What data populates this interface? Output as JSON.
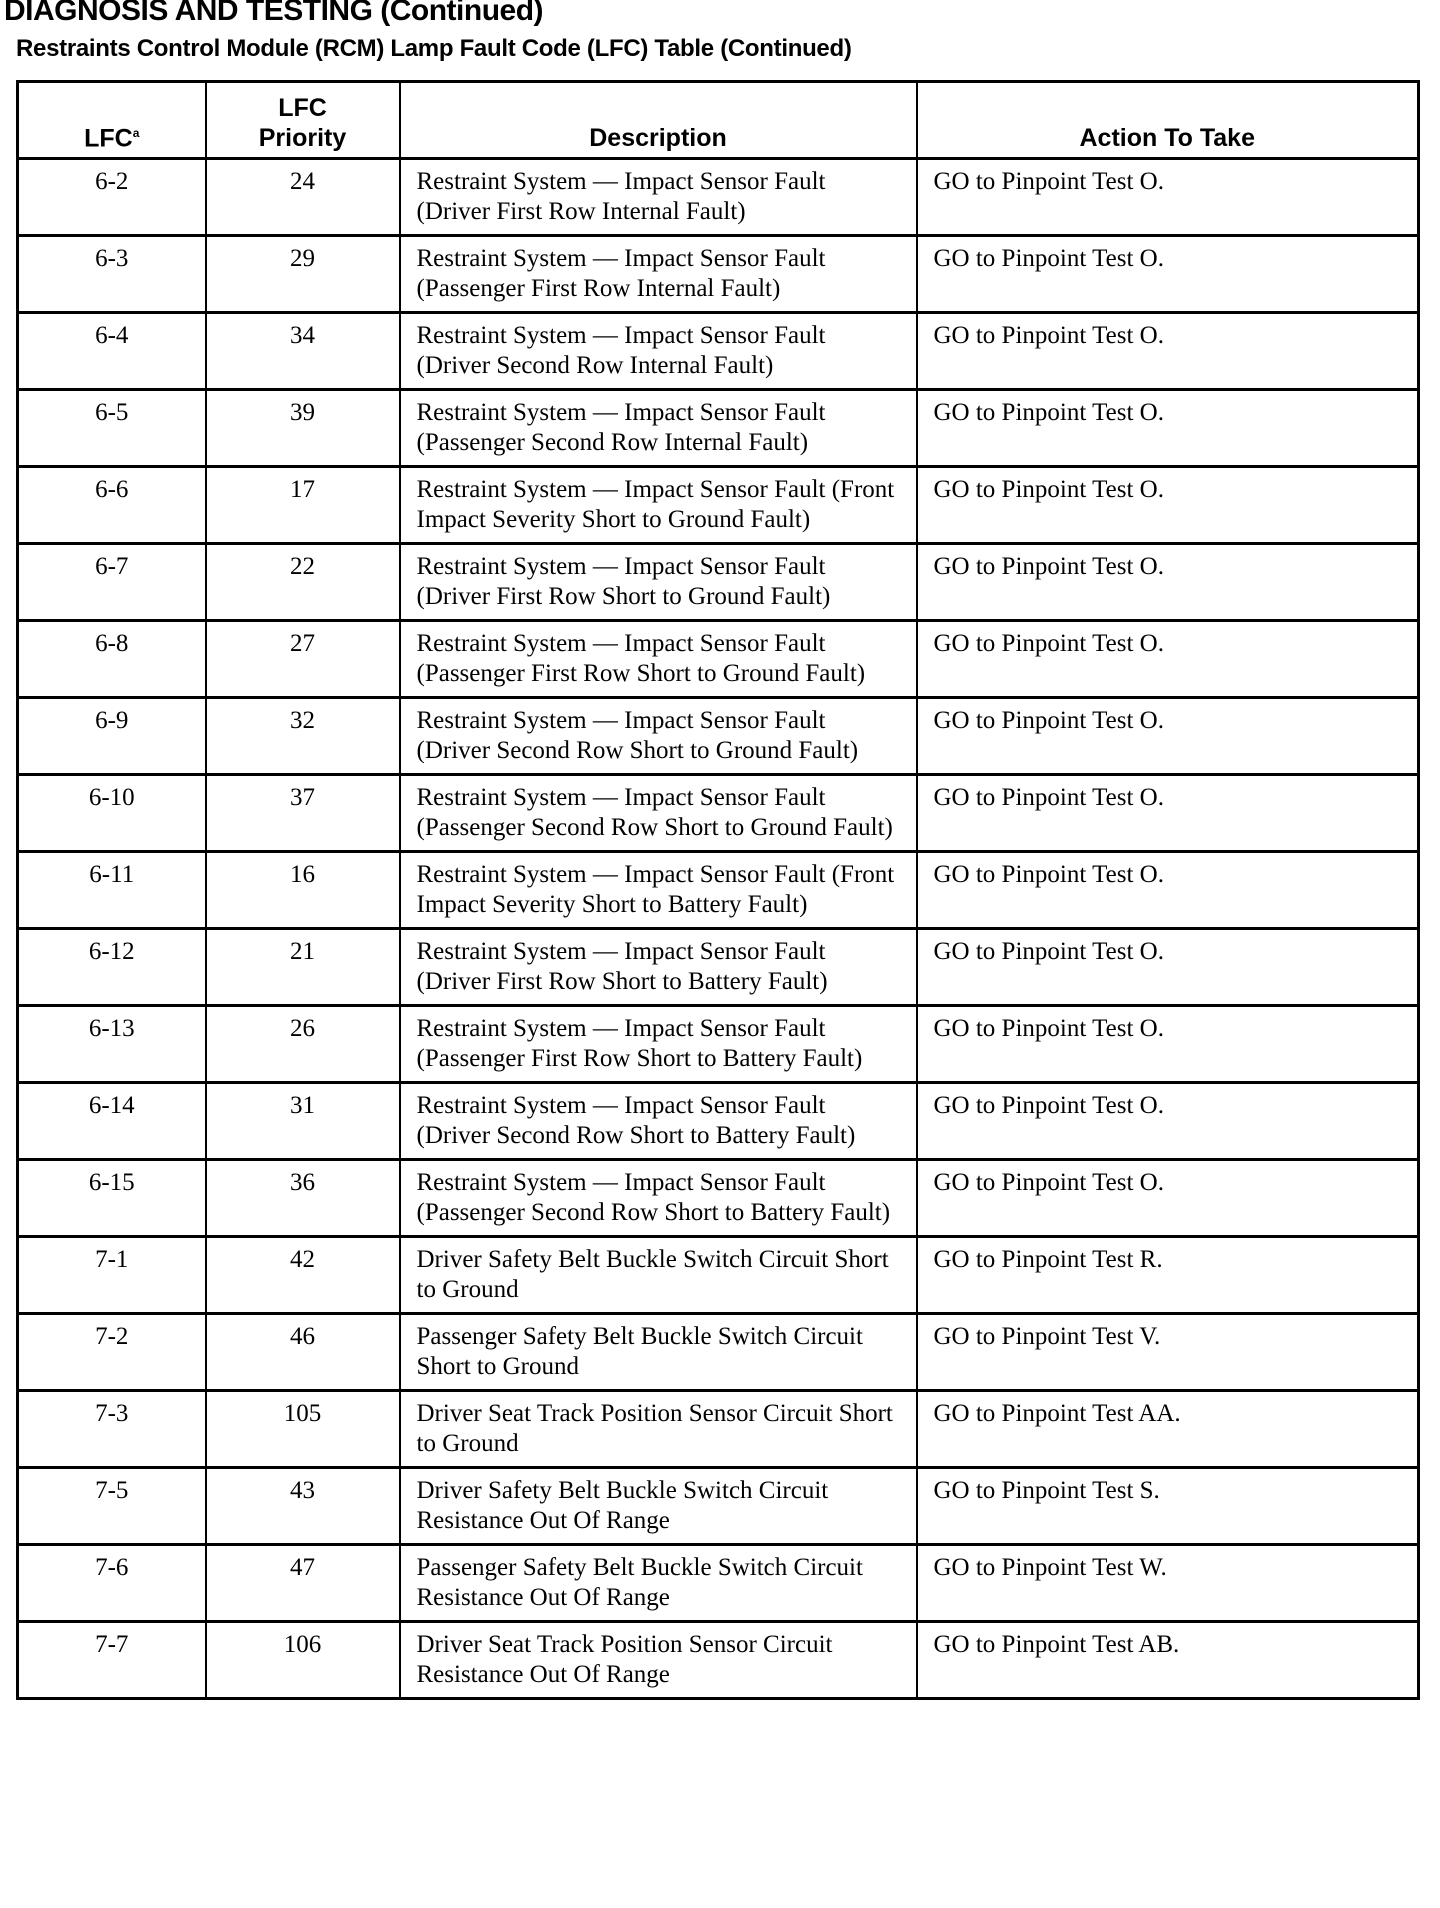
{
  "page": {
    "title": "DIAGNOSIS AND TESTING (Continued)",
    "subtitle": "Restraints Control Module (RCM) Lamp Fault Code (LFC) Table (Continued)"
  },
  "table": {
    "headers": {
      "lfc": "LFC",
      "lfc_footnote": "a",
      "priority_line1": "LFC",
      "priority_line2": "Priority",
      "description": "Description",
      "action": "Action To Take"
    },
    "rows": [
      {
        "lfc": "6-2",
        "priority": "24",
        "description": "Restraint System — Impact Sensor Fault (Driver First Row Internal Fault)",
        "action": "GO to Pinpoint Test O."
      },
      {
        "lfc": "6-3",
        "priority": "29",
        "description": "Restraint System — Impact Sensor Fault (Passenger First Row Internal Fault)",
        "action": "GO to Pinpoint Test O."
      },
      {
        "lfc": "6-4",
        "priority": "34",
        "description": "Restraint System — Impact Sensor Fault (Driver Second Row Internal Fault)",
        "action": "GO to Pinpoint Test O."
      },
      {
        "lfc": "6-5",
        "priority": "39",
        "description": "Restraint System — Impact Sensor Fault (Passenger Second Row Internal Fault)",
        "action": "GO to Pinpoint Test O."
      },
      {
        "lfc": "6-6",
        "priority": "17",
        "description": "Restraint System — Impact Sensor Fault (Front Impact Severity Short to Ground Fault)",
        "action": "GO to Pinpoint Test O."
      },
      {
        "lfc": "6-7",
        "priority": "22",
        "description": "Restraint System — Impact Sensor Fault (Driver First Row Short to Ground Fault)",
        "action": "GO to Pinpoint Test O."
      },
      {
        "lfc": "6-8",
        "priority": "27",
        "description": "Restraint System — Impact Sensor Fault (Passenger First Row Short to Ground Fault)",
        "action": "GO to Pinpoint Test O."
      },
      {
        "lfc": "6-9",
        "priority": "32",
        "description": "Restraint System — Impact Sensor Fault (Driver Second Row Short to Ground Fault)",
        "action": "GO to Pinpoint Test O."
      },
      {
        "lfc": "6-10",
        "priority": "37",
        "description": "Restraint System — Impact Sensor Fault (Passenger Second Row Short to Ground Fault)",
        "action": "GO to Pinpoint Test O."
      },
      {
        "lfc": "6-11",
        "priority": "16",
        "description": "Restraint System — Impact Sensor Fault (Front Impact Severity Short to Battery Fault)",
        "action": "GO to Pinpoint Test O."
      },
      {
        "lfc": "6-12",
        "priority": "21",
        "description": "Restraint System — Impact Sensor Fault (Driver First Row Short to Battery Fault)",
        "action": "GO to Pinpoint Test O."
      },
      {
        "lfc": "6-13",
        "priority": "26",
        "description": "Restraint System — Impact Sensor Fault (Passenger First Row Short to Battery Fault)",
        "action": "GO to Pinpoint Test O."
      },
      {
        "lfc": "6-14",
        "priority": "31",
        "description": "Restraint System — Impact Sensor Fault (Driver Second Row Short to Battery Fault)",
        "action": "GO to Pinpoint Test O."
      },
      {
        "lfc": "6-15",
        "priority": "36",
        "description": "Restraint System — Impact Sensor Fault (Passenger Second Row Short to Battery Fault)",
        "action": "GO to Pinpoint Test O."
      },
      {
        "lfc": "7-1",
        "priority": "42",
        "description": "Driver Safety Belt Buckle Switch Circuit Short to Ground",
        "action": "GO to Pinpoint Test R."
      },
      {
        "lfc": "7-2",
        "priority": "46",
        "description": "Passenger Safety Belt Buckle Switch Circuit Short to Ground",
        "action": "GO to Pinpoint Test V."
      },
      {
        "lfc": "7-3",
        "priority": "105",
        "description": "Driver Seat Track Position Sensor Circuit Short to Ground",
        "action": "GO to Pinpoint Test AA."
      },
      {
        "lfc": "7-5",
        "priority": "43",
        "description": "Driver Safety Belt Buckle Switch Circuit Resistance Out Of Range",
        "action": "GO to Pinpoint Test S."
      },
      {
        "lfc": "7-6",
        "priority": "47",
        "description": "Passenger Safety Belt Buckle Switch Circuit Resistance Out Of Range",
        "action": "GO to Pinpoint Test W."
      },
      {
        "lfc": "7-7",
        "priority": "106",
        "description": "Driver Seat Track Position Sensor Circuit Resistance Out Of Range",
        "action": "GO to Pinpoint Test AB."
      }
    ]
  }
}
